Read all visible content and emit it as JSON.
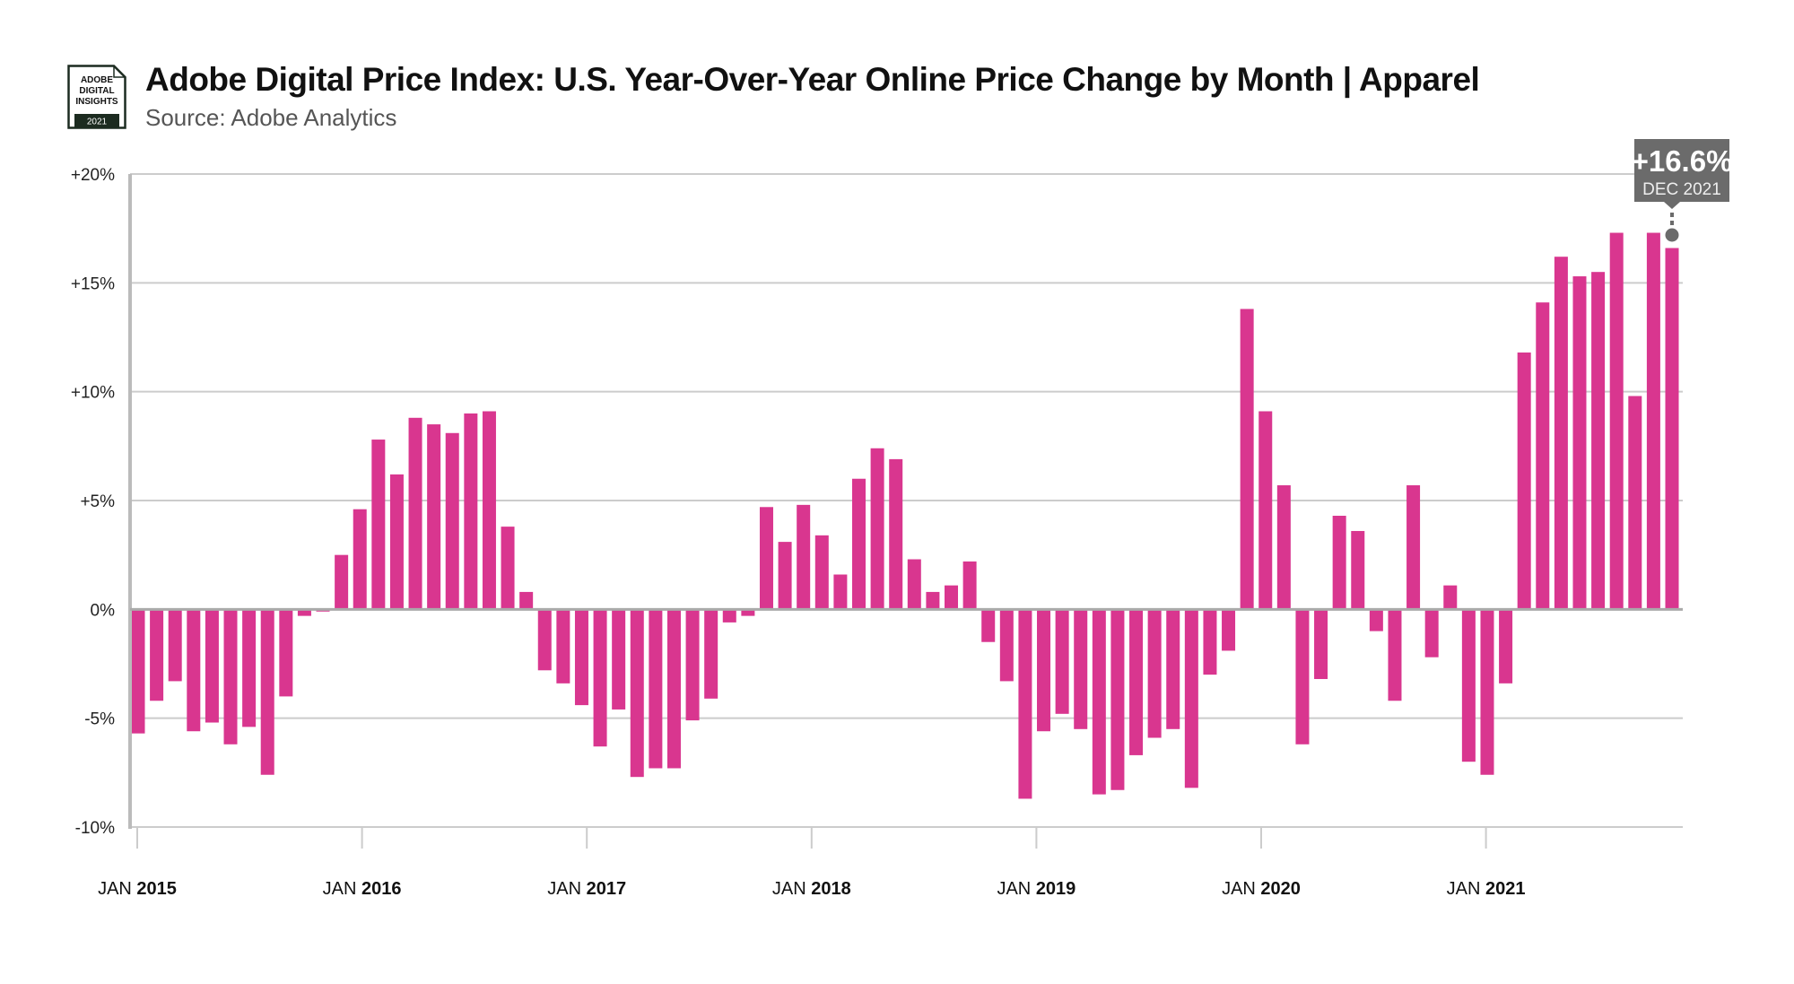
{
  "header": {
    "logo_lines": [
      "ADOBE",
      "DIGITAL",
      "INSIGHTS"
    ],
    "logo_year": "2021",
    "title": "Adobe Digital Price Index: U.S. Year-Over-Year Online Price Change by Month  |  Apparel",
    "subtitle": "Source: Adobe Analytics"
  },
  "colors": {
    "bar": "#d9368f",
    "grid": "#cccccc",
    "axis": "#bbbbbb",
    "tooltip_bg": "#6b6b6b",
    "logo_band": "#1c2b20"
  },
  "chart_data": {
    "type": "bar",
    "title": "Adobe Digital Price Index: U.S. Year-Over-Year Online Price Change by Month | Apparel",
    "subtitle": "Source: Adobe Analytics",
    "xlabel": "",
    "ylabel": "",
    "ylim": [
      -10,
      20
    ],
    "yticks": [
      -10,
      -5,
      0,
      5,
      10,
      15,
      20
    ],
    "ytick_labels": [
      "-10%",
      "-5%",
      "0%",
      "+5%",
      "+10%",
      "+15%",
      "+20%"
    ],
    "grid": true,
    "start": "JAN 2015",
    "end": "DEC 2021",
    "xtick_labels": [
      {
        "month": "JAN",
        "year": "2015"
      },
      {
        "month": "JAN",
        "year": "2016"
      },
      {
        "month": "JAN",
        "year": "2017"
      },
      {
        "month": "JAN",
        "year": "2018"
      },
      {
        "month": "JAN",
        "year": "2019"
      },
      {
        "month": "JAN",
        "year": "2020"
      },
      {
        "month": "JAN",
        "year": "2021"
      }
    ],
    "series": [
      {
        "name": "Apparel YoY online price change (%)",
        "values": [
          -5.7,
          -4.2,
          -3.3,
          -5.6,
          -5.2,
          -6.2,
          -5.4,
          -7.6,
          -4.0,
          -0.3,
          -0.1,
          2.5,
          4.6,
          7.8,
          6.2,
          8.8,
          8.5,
          8.1,
          9.0,
          9.1,
          3.8,
          0.8,
          -2.8,
          -3.4,
          -4.4,
          -6.3,
          -4.6,
          -7.7,
          -7.3,
          -7.3,
          -5.1,
          -4.1,
          -0.6,
          -0.3,
          4.7,
          3.1,
          4.8,
          3.4,
          1.6,
          6.0,
          7.4,
          6.9,
          2.3,
          0.8,
          1.1,
          2.2,
          -1.5,
          -3.3,
          -8.7,
          -5.6,
          -4.8,
          -5.5,
          -8.5,
          -8.3,
          -6.7,
          -5.9,
          -5.5,
          -8.2,
          -3.0,
          -1.9,
          13.8,
          9.1,
          5.7,
          -6.2,
          -3.2,
          4.3,
          3.6,
          -1.0,
          -4.2,
          5.7,
          -2.2,
          1.1,
          -7.0,
          -7.6,
          -3.4,
          11.8,
          14.1,
          16.2,
          15.3,
          15.5,
          17.3,
          9.8,
          17.3,
          16.6
        ]
      }
    ],
    "annotation": {
      "value_label": "+16.6%",
      "date_label": "DEC 2021",
      "index": 83
    }
  }
}
